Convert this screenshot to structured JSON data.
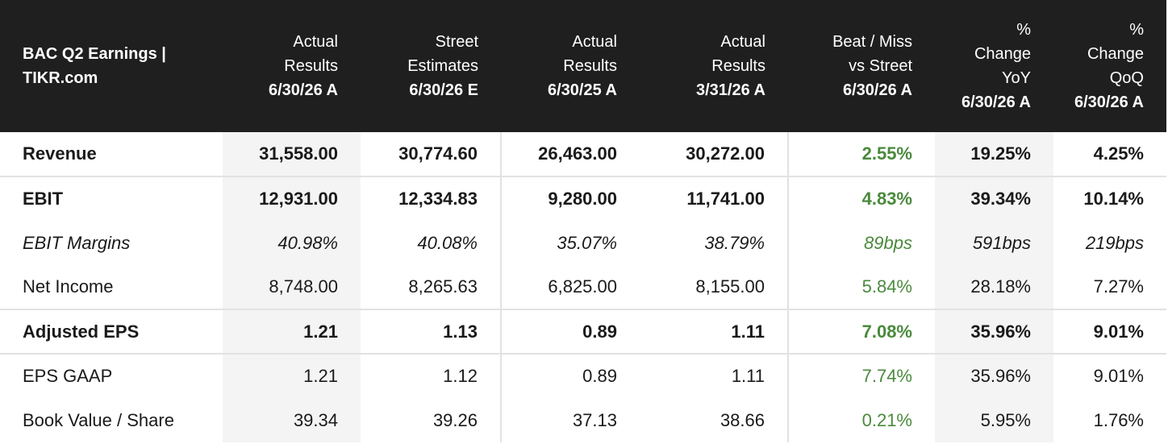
{
  "table": {
    "title": "BAC Q2 Earnings | TIKR.com",
    "columns": [
      {
        "lines": [
          "Actual",
          "Results"
        ],
        "date": "6/30/26 A"
      },
      {
        "lines": [
          "Street",
          "Estimates"
        ],
        "date": "6/30/26 E"
      },
      {
        "lines": [
          "Actual",
          "Results"
        ],
        "date": "6/30/25 A"
      },
      {
        "lines": [
          "Actual",
          "Results"
        ],
        "date": "3/31/26 A"
      },
      {
        "lines": [
          "Beat / Miss",
          "vs Street"
        ],
        "date": "6/30/26 A"
      },
      {
        "lines": [
          "%",
          "Change",
          "YoY"
        ],
        "date": "6/30/26 A"
      },
      {
        "lines": [
          "%",
          "Change",
          "QoQ"
        ],
        "date": "6/30/26 A"
      }
    ],
    "rows": [
      {
        "label": "Revenue",
        "values": [
          "31,558.00",
          "30,774.60",
          "26,463.00",
          "30,272.00",
          "2.55%",
          "19.25%",
          "4.25%"
        ]
      },
      {
        "label": "EBIT",
        "values": [
          "12,931.00",
          "12,334.83",
          "9,280.00",
          "11,741.00",
          "4.83%",
          "39.34%",
          "10.14%"
        ]
      },
      {
        "label": "EBIT Margins",
        "values": [
          "40.98%",
          "40.08%",
          "35.07%",
          "38.79%",
          "89bps",
          "591bps",
          "219bps"
        ]
      },
      {
        "label": "Net Income",
        "values": [
          "8,748.00",
          "8,265.63",
          "6,825.00",
          "8,155.00",
          "5.84%",
          "28.18%",
          "7.27%"
        ]
      },
      {
        "label": "Adjusted EPS",
        "values": [
          "1.21",
          "1.13",
          "0.89",
          "1.11",
          "7.08%",
          "35.96%",
          "9.01%"
        ]
      },
      {
        "label": "EPS GAAP",
        "values": [
          "1.21",
          "1.12",
          "0.89",
          "1.11",
          "7.74%",
          "35.96%",
          "9.01%"
        ]
      },
      {
        "label": "Book Value / Share",
        "values": [
          "39.34",
          "39.26",
          "37.13",
          "38.66",
          "0.21%",
          "5.95%",
          "1.76%"
        ]
      }
    ]
  },
  "colors": {
    "header_bg": "#1f1f1f",
    "positive": "#4a8a3c",
    "shade": "#f4f4f4"
  }
}
